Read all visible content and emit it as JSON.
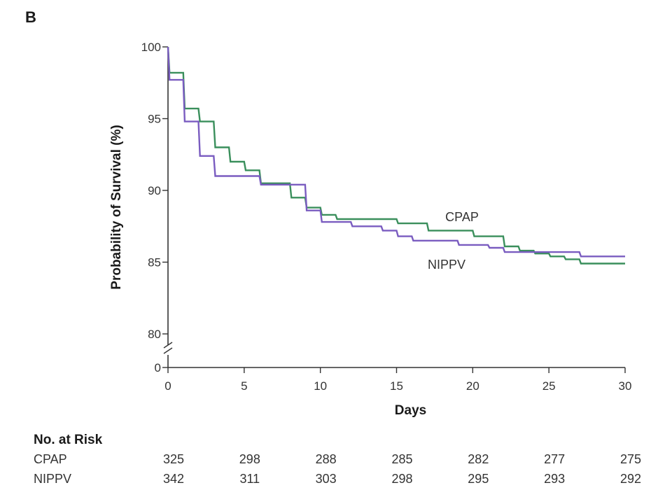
{
  "panel_label": "B",
  "chart_data": {
    "type": "line",
    "title": "",
    "xlabel": "Days",
    "ylabel": "Probability of Survival (%)",
    "xlim": [
      0,
      30
    ],
    "ylim": [
      80,
      100
    ],
    "y_axis_break": true,
    "x_ticks": [
      "0",
      "5",
      "10",
      "15",
      "20",
      "25",
      "30"
    ],
    "y_ticks": [
      "0",
      "80",
      "85",
      "90",
      "95",
      "100"
    ],
    "grid": false,
    "series": [
      {
        "name": "CPAP",
        "color": "#3a8f5c",
        "x": [
          0,
          0.1,
          1,
          1.1,
          2,
          2.1,
          3,
          3.1,
          4,
          4.1,
          5,
          5.1,
          6,
          6.1,
          8,
          8.1,
          9,
          9.1,
          10,
          10.1,
          11,
          11.1,
          15,
          15.1,
          17,
          17.1,
          20,
          20.1,
          22,
          22.1,
          23,
          23.1,
          24,
          24.1,
          25,
          25.1,
          26,
          26.1,
          27,
          27.1,
          30
        ],
        "y": [
          100,
          98.2,
          98.2,
          95.7,
          95.7,
          94.8,
          94.8,
          93.0,
          93.0,
          92.0,
          92.0,
          91.4,
          91.4,
          90.5,
          90.5,
          89.5,
          89.5,
          88.8,
          88.8,
          88.3,
          88.3,
          88.0,
          88.0,
          87.7,
          87.7,
          87.2,
          87.2,
          86.8,
          86.8,
          86.1,
          86.1,
          85.8,
          85.8,
          85.6,
          85.6,
          85.4,
          85.4,
          85.2,
          85.2,
          84.9,
          84.9
        ]
      },
      {
        "name": "NIPPV",
        "color": "#7a5cc0",
        "x": [
          0,
          0.1,
          1,
          1.1,
          2,
          2.1,
          3,
          3.1,
          6,
          6.1,
          9,
          9.1,
          10,
          10.1,
          12,
          12.1,
          14,
          14.1,
          15,
          15.1,
          16,
          16.1,
          19,
          19.1,
          21,
          21.1,
          22,
          22.1,
          27,
          27.1,
          30
        ],
        "y": [
          100,
          97.7,
          97.7,
          94.8,
          94.8,
          92.4,
          92.4,
          91.0,
          91.0,
          90.4,
          90.4,
          88.6,
          88.6,
          87.8,
          87.8,
          87.5,
          87.5,
          87.2,
          87.2,
          86.8,
          86.8,
          86.5,
          86.5,
          86.2,
          86.2,
          86.0,
          86.0,
          85.7,
          85.7,
          85.4,
          85.4
        ]
      }
    ],
    "series_labels": [
      "CPAP",
      "NIPPV"
    ],
    "risk_table": {
      "title": "No. at Risk",
      "rows": [
        {
          "label": "CPAP",
          "values": [
            "325",
            "298",
            "288",
            "285",
            "282",
            "277",
            "275"
          ]
        },
        {
          "label": "NIPPV",
          "values": [
            "342",
            "311",
            "303",
            "298",
            "295",
            "293",
            "292"
          ]
        }
      ]
    }
  }
}
